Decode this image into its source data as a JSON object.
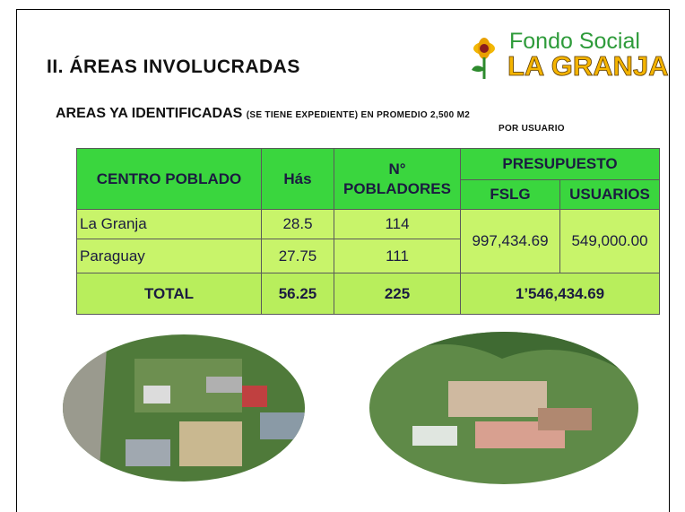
{
  "header": {
    "title": "II.  ÁREAS INVOLUCRADAS",
    "logo_line1": "Fondo Social",
    "logo_line2": "LA GRANJA"
  },
  "subtitle": {
    "main": "AREAS YA IDENTIFICADAS",
    "note_line1": "(SE TIENE  EXPEDIENTE) EN PROMEDIO 2,500 M2",
    "note_line2": "POR USUARIO"
  },
  "table": {
    "headers": [
      "CENTRO POBLADO",
      "Hás",
      "N° POBLADORES",
      "PRESUPUESTO",
      "FSLG",
      "USUARIOS"
    ],
    "rows": [
      [
        "La Granja",
        "28.5",
        "114",
        "997,434.69",
        "549,000.00"
      ],
      [
        "Paraguay",
        "27.75",
        "111"
      ]
    ],
    "total": [
      "TOTAL",
      "56.25",
      "225",
      "1’546,434.69"
    ]
  }
}
